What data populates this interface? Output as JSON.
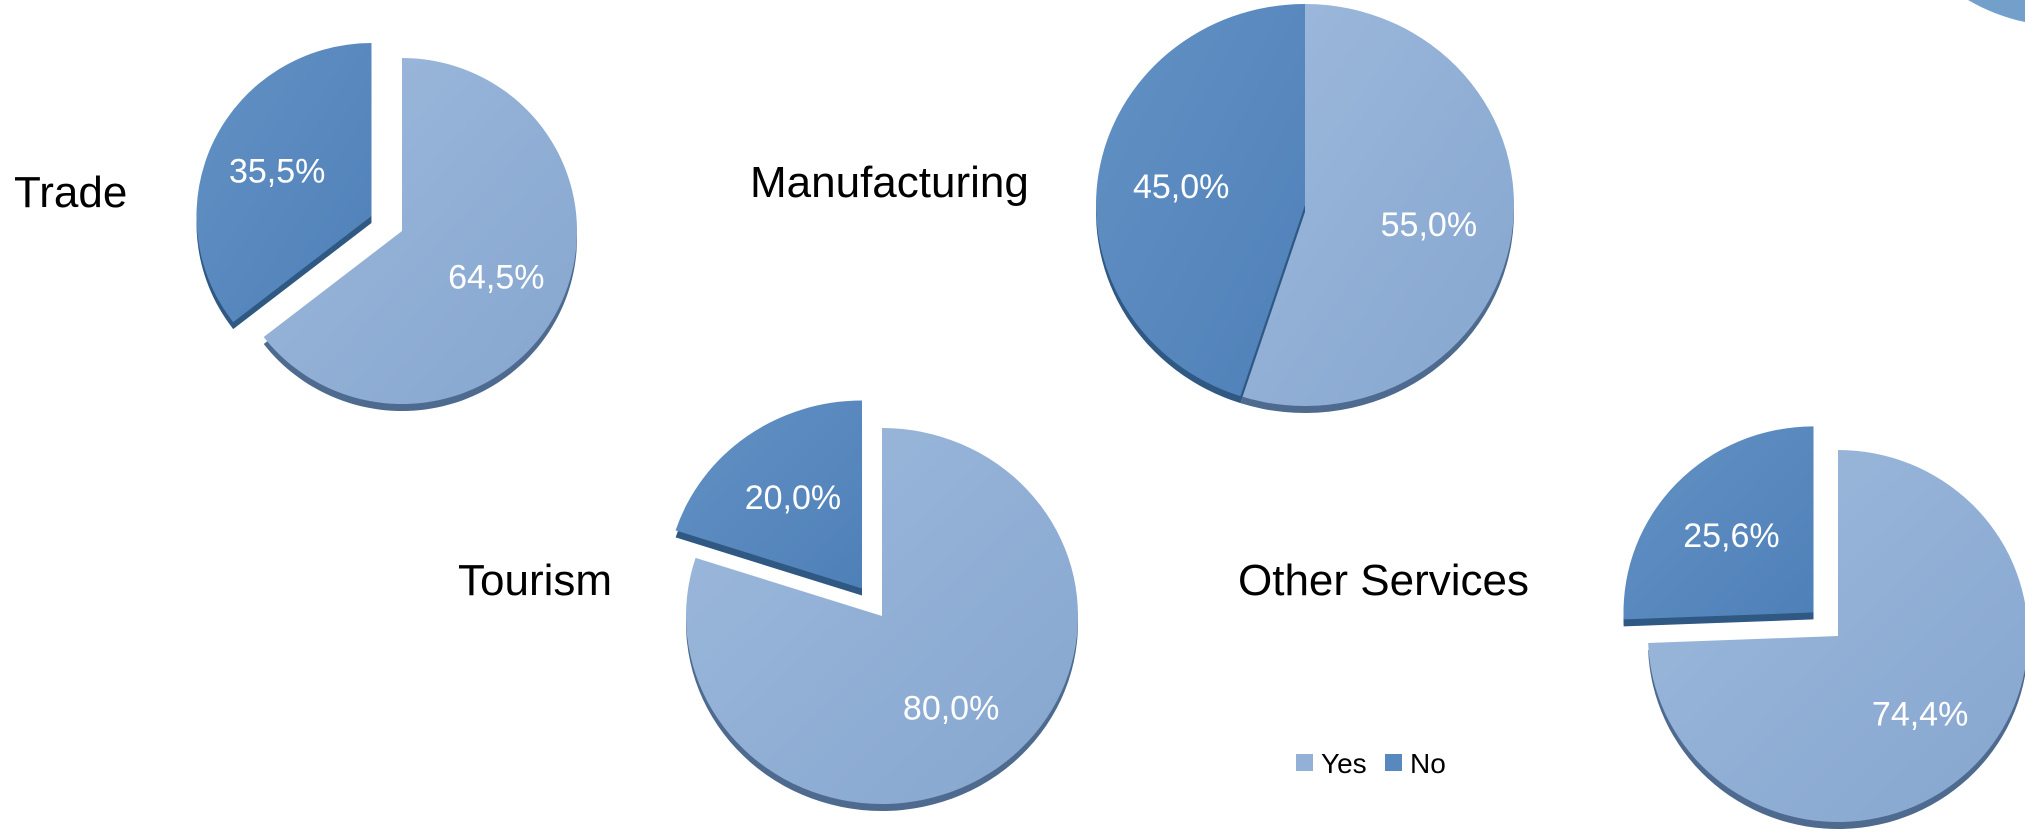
{
  "legend": {
    "items": [
      {
        "label": "Yes",
        "color": "#93B1D7"
      },
      {
        "label": "No",
        "color": "#5788BE"
      }
    ]
  },
  "chart_data": [
    {
      "type": "pie",
      "title": "Trade",
      "categories": [
        "Yes",
        "No"
      ],
      "values": [
        64.5,
        35.5
      ],
      "labels": [
        "64,5%",
        "35,5%"
      ],
      "exploded": "No"
    },
    {
      "type": "pie",
      "title": "Manufacturing",
      "categories": [
        "Yes",
        "No"
      ],
      "values": [
        55.0,
        45.0
      ],
      "labels": [
        "55,0%",
        "45,0%"
      ],
      "exploded": "none"
    },
    {
      "type": "pie",
      "title": "Tourism",
      "categories": [
        "Yes",
        "No"
      ],
      "values": [
        80.0,
        20.0
      ],
      "labels": [
        "80,0%",
        "20,0%"
      ],
      "exploded": "No"
    },
    {
      "type": "pie",
      "title": "Other Services",
      "categories": [
        "Yes",
        "No"
      ],
      "values": [
        74.4,
        25.6
      ],
      "labels": [
        "74,4%",
        "25,6%"
      ],
      "exploded": "No"
    }
  ]
}
